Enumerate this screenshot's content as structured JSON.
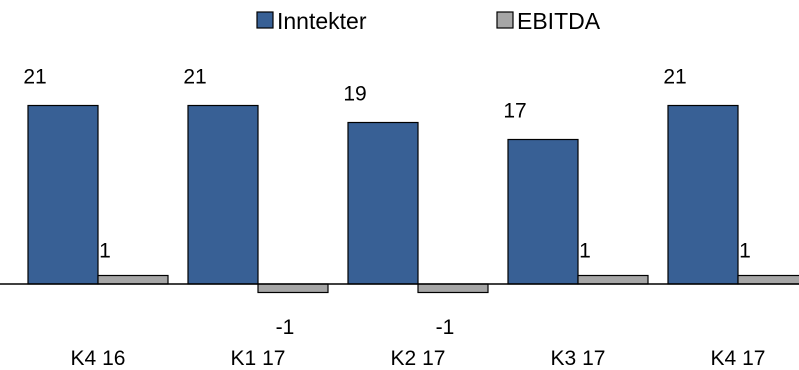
{
  "chart_data": {
    "type": "bar",
    "categories": [
      "K4 16",
      "K1 17",
      "K2 17",
      "K3 17",
      "K4 17"
    ],
    "series": [
      {
        "name": "Inntekter",
        "values": [
          21,
          21,
          19,
          17,
          21
        ],
        "labels": [
          "21",
          "21",
          "19",
          "17",
          "21"
        ],
        "color": "#386095"
      },
      {
        "name": "EBITDA",
        "values": [
          1,
          -1,
          -1,
          1,
          1
        ],
        "labels": [
          "1",
          "-1",
          "-1",
          "1",
          "1"
        ],
        "color": "#a6a6a6"
      }
    ],
    "ylim": [
      -1.2,
      22
    ],
    "grid": false,
    "legend": "top-center",
    "xlabel": "",
    "ylabel": ""
  }
}
